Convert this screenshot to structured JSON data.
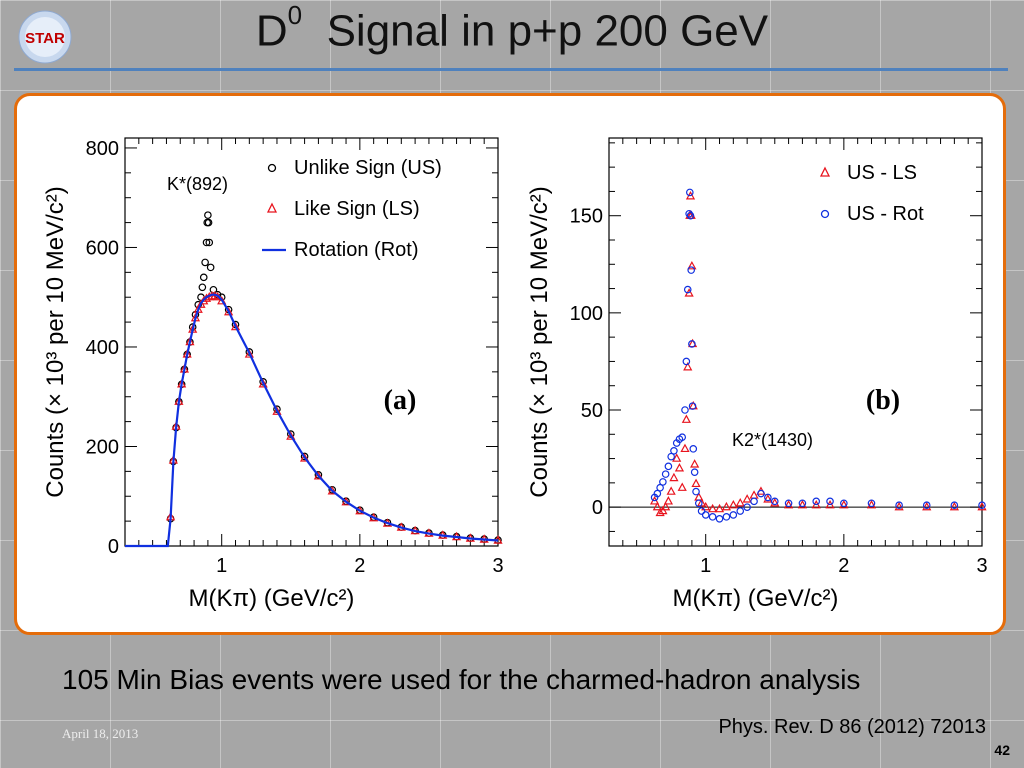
{
  "slide": {
    "title_main": "D",
    "title_sup": "0",
    "title_rest": "  Signal in p+p 200 GeV",
    "logo_text": "STAR",
    "stats_text": "105 Min Bias events were used for the charmed-hadron analysis",
    "date": "April 18, 2013",
    "reference": "Phys. Rev. D 86 (2012) 72013",
    "page_number": "42",
    "accent_color": "#4f81bd",
    "frame_color": "#e46c0a"
  },
  "chart_data": [
    {
      "type": "scatter",
      "panel_label": "(a)",
      "xlabel": "M(Kπ) (GeV/c²)",
      "ylabel": "Counts (× 10³ per 10 MeV/c²)",
      "xlim": [
        0.3,
        3.0
      ],
      "ylim": [
        0,
        820
      ],
      "xticks": [
        1,
        2,
        3
      ],
      "yticks": [
        0,
        200,
        400,
        600,
        800
      ],
      "legend_position": "top-right",
      "legend": [
        "Unlike Sign (US)",
        "Like Sign (LS)",
        "Rotation (Rot)"
      ],
      "annotation": {
        "text": "K*(892)",
        "x": 0.9,
        "y": 720
      },
      "series": [
        {
          "name": "Unlike Sign (US)",
          "marker": "circle",
          "color": "#000000",
          "x": [
            0.63,
            0.65,
            0.67,
            0.69,
            0.71,
            0.73,
            0.75,
            0.77,
            0.79,
            0.81,
            0.83,
            0.85,
            0.86,
            0.87,
            0.88,
            0.89,
            0.895,
            0.9,
            0.905,
            0.91,
            0.92,
            0.94,
            0.97,
            1.0,
            1.05,
            1.1,
            1.2,
            1.3,
            1.4,
            1.5,
            1.6,
            1.7,
            1.8,
            1.9,
            2.0,
            2.1,
            2.2,
            2.3,
            2.4,
            2.5,
            2.6,
            2.7,
            2.8,
            2.9,
            3.0
          ],
          "y": [
            55,
            170,
            238,
            290,
            325,
            355,
            385,
            410,
            440,
            465,
            485,
            500,
            520,
            540,
            570,
            610,
            650,
            665,
            650,
            610,
            560,
            515,
            505,
            500,
            475,
            445,
            390,
            330,
            275,
            225,
            180,
            143,
            113,
            90,
            72,
            58,
            47,
            38,
            31,
            26,
            22,
            19,
            16,
            14,
            12
          ]
        },
        {
          "name": "Like Sign (LS)",
          "marker": "triangle",
          "color": "#e8141e",
          "x": [
            0.63,
            0.65,
            0.67,
            0.69,
            0.71,
            0.73,
            0.75,
            0.77,
            0.79,
            0.81,
            0.83,
            0.85,
            0.87,
            0.89,
            0.91,
            0.93,
            0.95,
            0.97,
            1.0,
            1.05,
            1.1,
            1.2,
            1.3,
            1.4,
            1.5,
            1.6,
            1.7,
            1.8,
            1.9,
            2.0,
            2.1,
            2.2,
            2.3,
            2.4,
            2.5,
            2.6,
            2.7,
            2.8,
            2.9,
            3.0
          ],
          "y": [
            58,
            172,
            240,
            290,
            325,
            355,
            385,
            410,
            435,
            458,
            475,
            485,
            492,
            497,
            500,
            502,
            502,
            500,
            492,
            470,
            440,
            385,
            325,
            270,
            220,
            176,
            140,
            110,
            88,
            70,
            56,
            45,
            37,
            30,
            25,
            21,
            18,
            15,
            13,
            11
          ]
        },
        {
          "name": "Rotation (Rot)",
          "marker": "line",
          "color": "#1030e0",
          "x": [
            0.3,
            0.61,
            0.63,
            0.65,
            0.67,
            0.69,
            0.71,
            0.73,
            0.75,
            0.77,
            0.79,
            0.81,
            0.83,
            0.85,
            0.87,
            0.89,
            0.91,
            0.93,
            0.95,
            0.97,
            1.0,
            1.05,
            1.1,
            1.2,
            1.3,
            1.4,
            1.5,
            1.6,
            1.7,
            1.8,
            1.9,
            2.0,
            2.1,
            2.2,
            2.3,
            2.4,
            2.5,
            2.6,
            2.7,
            2.8,
            2.9,
            3.0
          ],
          "y": [
            0,
            0,
            55,
            170,
            238,
            290,
            325,
            355,
            385,
            410,
            435,
            458,
            475,
            488,
            495,
            500,
            503,
            505,
            505,
            503,
            495,
            472,
            442,
            388,
            328,
            272,
            222,
            178,
            141,
            111,
            89,
            71,
            57,
            46,
            37,
            30,
            25,
            21,
            18,
            15,
            13,
            11
          ]
        }
      ]
    },
    {
      "type": "scatter",
      "panel_label": "(b)",
      "xlabel": "M(Kπ) (GeV/c²)",
      "ylabel": "Counts (× 10³ per 10 MeV/c²)",
      "xlim": [
        0.3,
        3.0
      ],
      "ylim": [
        -20,
        190
      ],
      "xticks": [
        1,
        2,
        3
      ],
      "yticks": [
        0,
        50,
        100,
        150
      ],
      "legend_position": "top-right",
      "legend": [
        "US - LS",
        "US - Rot"
      ],
      "annotation": {
        "text": "K2*(1430)",
        "x": 1.4,
        "y": 32
      },
      "series": [
        {
          "name": "US - LS",
          "marker": "triangle",
          "color": "#e8141e",
          "x": [
            0.63,
            0.65,
            0.67,
            0.69,
            0.71,
            0.73,
            0.75,
            0.77,
            0.79,
            0.81,
            0.83,
            0.85,
            0.86,
            0.87,
            0.88,
            0.885,
            0.89,
            0.895,
            0.9,
            0.905,
            0.91,
            0.92,
            0.93,
            0.95,
            0.97,
            1.0,
            1.05,
            1.1,
            1.15,
            1.2,
            1.25,
            1.3,
            1.35,
            1.4,
            1.45,
            1.5,
            1.6,
            1.7,
            1.8,
            1.9,
            2.0,
            2.2,
            2.4,
            2.6,
            2.8,
            3.0
          ],
          "y": [
            3,
            0,
            -3,
            -2,
            0,
            3,
            8,
            15,
            25,
            20,
            10,
            30,
            45,
            72,
            110,
            150,
            160,
            150,
            124,
            84,
            52,
            22,
            12,
            5,
            2,
            0,
            -1,
            -1,
            0,
            1,
            2,
            4,
            6,
            8,
            4,
            2,
            1,
            1,
            1,
            1,
            1,
            1,
            0,
            0,
            0,
            0
          ]
        },
        {
          "name": "US - Rot",
          "marker": "circle",
          "color": "#1030e0",
          "x": [
            0.63,
            0.65,
            0.67,
            0.69,
            0.71,
            0.73,
            0.75,
            0.77,
            0.79,
            0.81,
            0.83,
            0.85,
            0.86,
            0.87,
            0.88,
            0.885,
            0.89,
            0.895,
            0.9,
            0.905,
            0.91,
            0.92,
            0.93,
            0.95,
            0.97,
            1.0,
            1.05,
            1.1,
            1.15,
            1.2,
            1.25,
            1.3,
            1.35,
            1.4,
            1.45,
            1.5,
            1.6,
            1.7,
            1.8,
            1.9,
            2.0,
            2.2,
            2.4,
            2.6,
            2.8,
            3.0
          ],
          "y": [
            5,
            7,
            10,
            13,
            17,
            21,
            26,
            29,
            33,
            35,
            36,
            50,
            75,
            112,
            151,
            162,
            150,
            122,
            84,
            52,
            30,
            18,
            8,
            2,
            -2,
            -4,
            -5,
            -6,
            -5,
            -4,
            -2,
            0,
            3,
            7,
            5,
            3,
            2,
            2,
            3,
            3,
            2,
            2,
            1,
            1,
            1,
            1
          ]
        }
      ]
    }
  ]
}
